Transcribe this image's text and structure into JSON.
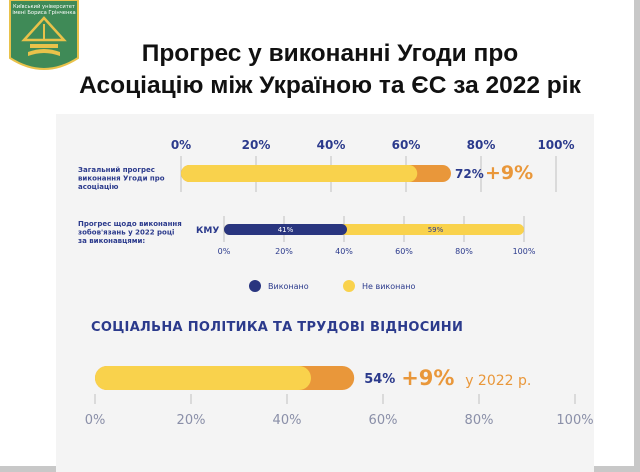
{
  "logo": {
    "text_line1": "Київський університет",
    "text_line2": "імені Бориса Грінченка",
    "icon": "university-logo-icon",
    "colors": {
      "background": "#3f8a57",
      "emblem": "#e9c24a"
    }
  },
  "title": {
    "line1": "Прогрес у виконанні Угоди про",
    "line2": "Асоціацію між Україною та ЄС  за 2022 рік"
  },
  "colors": {
    "done": "#29357f",
    "not_done": "#f9d24c",
    "increase": "#e9973a",
    "text_dark": "#2b3a8c",
    "grid": "#bfbfbf",
    "panel": "#f4f4f4"
  },
  "chart_data": [
    {
      "type": "bar",
      "orientation": "horizontal",
      "ylabel": "Загальний прогрес виконання Угоди про асоціацію",
      "xlim": [
        0,
        100
      ],
      "ticks": [
        "0%",
        "20%",
        "40%",
        "60%",
        "80%",
        "100%"
      ],
      "base_value": 63,
      "increase_value": 9,
      "total_value": 72,
      "value_label": "72%",
      "increase_label": "+9%"
    },
    {
      "type": "bar",
      "orientation": "horizontal",
      "stacked": true,
      "ylabel": "Прогрес щодо виконання зобов'язань у 2022 році за виконавцями:",
      "category": "КМУ",
      "xlim": [
        0,
        100
      ],
      "ticks": [
        "0%",
        "20%",
        "40%",
        "60%",
        "80%",
        "100%"
      ],
      "series": [
        {
          "name": "Виконано",
          "value": 41,
          "label": "41%"
        },
        {
          "name": "Не виконано",
          "value": 59,
          "label": "59%"
        }
      ],
      "legend_position": "bottom"
    },
    {
      "type": "bar",
      "orientation": "horizontal",
      "title": "СОЦІАЛЬНА ПОЛІТИКА ТА ТРУДОВІ ВІДНОСИНИ",
      "xlim": [
        0,
        100
      ],
      "ticks": [
        "0%",
        "20%",
        "40%",
        "60%",
        "80%",
        "100%"
      ],
      "base_value": 45,
      "increase_value": 9,
      "total_value": 54,
      "value_label": "54%",
      "increase_label": "+9%",
      "increase_suffix": "у 2022 р."
    }
  ]
}
